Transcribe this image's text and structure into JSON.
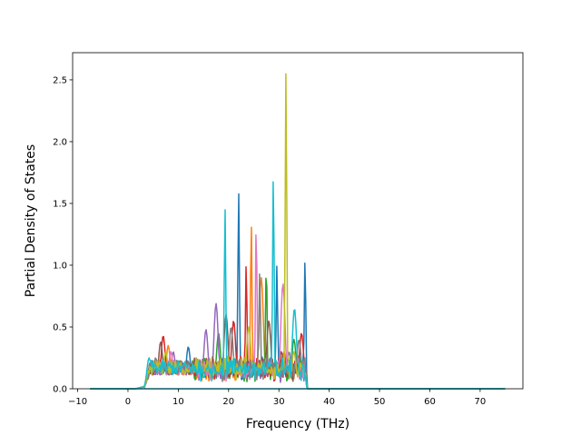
{
  "chart_data": {
    "type": "line",
    "title": "",
    "xlabel": "Frequency (THz)",
    "ylabel": "Partial Density of States",
    "xlim": [
      -11.0,
      78.5
    ],
    "ylim": [
      0.0,
      2.72
    ],
    "xticks": [
      -10,
      0,
      10,
      20,
      30,
      40,
      50,
      60,
      70
    ],
    "yticks": [
      0.0,
      0.5,
      1.0,
      1.5,
      2.0,
      2.5
    ],
    "xtick_labels": [
      "−10",
      "0",
      "10",
      "20",
      "30",
      "40",
      "50",
      "60",
      "70"
    ],
    "ytick_labels": [
      "0.0",
      "0.5",
      "1.0",
      "1.5",
      "2.0",
      "2.5"
    ],
    "grid": false,
    "legend": "none",
    "x_range": [
      -7.5,
      75.0
    ],
    "baseline_color": "#17becf",
    "series": [
      {
        "color": "#1f77b4",
        "points": [
          [
            4.5,
            0.2
          ],
          [
            12,
            0.34
          ],
          [
            22,
            1.59
          ],
          [
            29.6,
            1.0
          ],
          [
            35.2,
            1.05
          ]
        ]
      },
      {
        "color": "#ff7f0e",
        "points": [
          [
            8,
            0.35
          ],
          [
            24.5,
            1.35
          ],
          [
            26.5,
            0.9
          ],
          [
            31,
            0.3
          ]
        ]
      },
      {
        "color": "#2ca02c",
        "points": [
          [
            6,
            0.2
          ],
          [
            18,
            0.45
          ],
          [
            27.5,
            1.02
          ],
          [
            33,
            0.4
          ]
        ]
      },
      {
        "color": "#d62728",
        "points": [
          [
            7,
            0.43
          ],
          [
            21,
            0.55
          ],
          [
            23.5,
            1.02
          ],
          [
            34.5,
            0.45
          ]
        ]
      },
      {
        "color": "#9467bd",
        "points": [
          [
            9,
            0.3
          ],
          [
            15.5,
            0.48
          ],
          [
            17.5,
            0.69
          ],
          [
            32,
            0.3
          ]
        ]
      },
      {
        "color": "#8c564b",
        "points": [
          [
            6.5,
            0.38
          ],
          [
            19.5,
            0.6
          ],
          [
            28,
            0.55
          ],
          [
            30.5,
            0.3
          ]
        ]
      },
      {
        "color": "#e377c2",
        "points": [
          [
            8.5,
            0.3
          ],
          [
            25.5,
            1.34
          ],
          [
            30.8,
            0.85
          ],
          [
            33.5,
            0.2
          ]
        ]
      },
      {
        "color": "#7f7f7f",
        "points": [
          [
            5.5,
            0.25
          ],
          [
            20.5,
            0.5
          ],
          [
            26.2,
            0.96
          ],
          [
            34,
            0.4
          ]
        ]
      },
      {
        "color": "#bcbd22",
        "points": [
          [
            7.5,
            0.3
          ],
          [
            24,
            0.5
          ],
          [
            31.4,
            2.57
          ],
          [
            33,
            0.3
          ]
        ]
      },
      {
        "color": "#17becf",
        "points": [
          [
            4.2,
            0.25
          ],
          [
            19.3,
            1.46
          ],
          [
            28.9,
            1.73
          ],
          [
            33.1,
            0.65
          ]
        ]
      }
    ]
  }
}
